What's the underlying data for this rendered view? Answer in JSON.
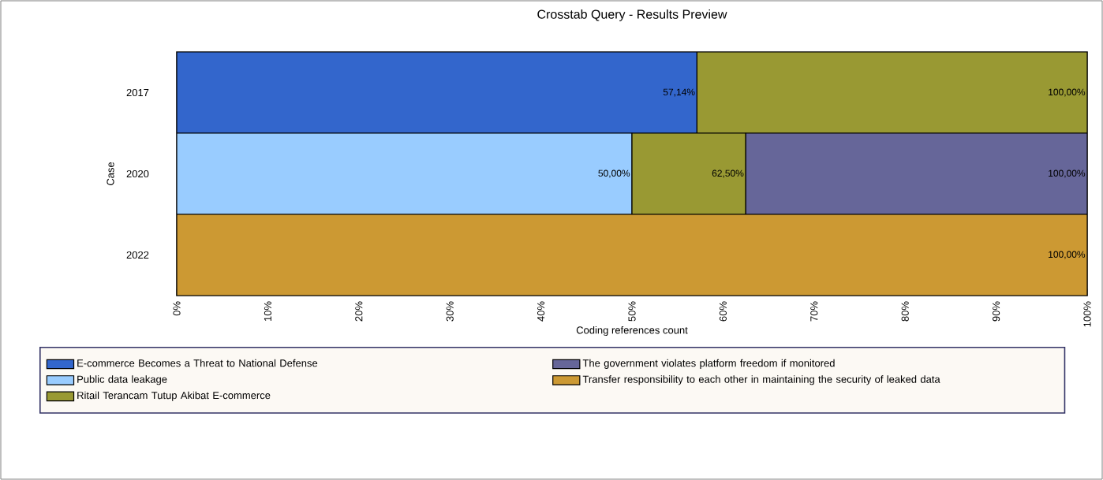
{
  "chart_data": {
    "type": "bar",
    "title": "Crosstab Query - Results Preview",
    "xlabel": "Coding references count",
    "ylabel": "Case",
    "orientation": "horizontal",
    "stacked": true,
    "categories": [
      "2017",
      "2020",
      "2022"
    ],
    "series": [
      {
        "name": "E-commerce Becomes a Threat to National Defense",
        "color": "#3366cc",
        "values": [
          57.14,
          null,
          null
        ]
      },
      {
        "name": "Public data leakage",
        "color": "#99ccff",
        "values": [
          null,
          50,
          null
        ]
      },
      {
        "name": "Ritail Terancam Tutup Akibat E-commerce",
        "color": "#999933",
        "values": [
          42.86,
          12.5,
          null
        ]
      },
      {
        "name": "The government violates platform freedom if monitored",
        "color": "#666699",
        "values": [
          null,
          37.5,
          null
        ]
      },
      {
        "name": "Transfer responsibility to each other in maintaining the security of leaked data",
        "color": "#cc9933",
        "values": [
          null,
          null,
          100
        ]
      }
    ],
    "annotations": [
      {
        "text": "57,14%",
        "x": 57.14,
        "y": "2017"
      },
      {
        "text": "100,00%",
        "x": 100,
        "y": "2017"
      },
      {
        "text": "50,00%",
        "x": 50,
        "y": "2020"
      },
      {
        "text": "62,50%",
        "x": 62.5,
        "y": "2020"
      },
      {
        "text": "100,00%",
        "x": 100,
        "y": "2020"
      },
      {
        "text": "100,00%",
        "x": 100,
        "y": "2022"
      }
    ],
    "xlim": [
      0,
      100
    ],
    "xticks": [
      {
        "value": 0,
        "label": "0%"
      },
      {
        "value": 10,
        "label": "10%"
      },
      {
        "value": 20,
        "label": "20%"
      },
      {
        "value": 30,
        "label": "30%"
      },
      {
        "value": 40,
        "label": "40%"
      },
      {
        "value": 50,
        "label": "50%"
      },
      {
        "value": 60,
        "label": "60%"
      },
      {
        "value": 70,
        "label": "70%"
      },
      {
        "value": 80,
        "label": "80%"
      },
      {
        "value": 90,
        "label": "90%"
      },
      {
        "value": 100,
        "label": "100%"
      }
    ],
    "legend": "bottom"
  }
}
